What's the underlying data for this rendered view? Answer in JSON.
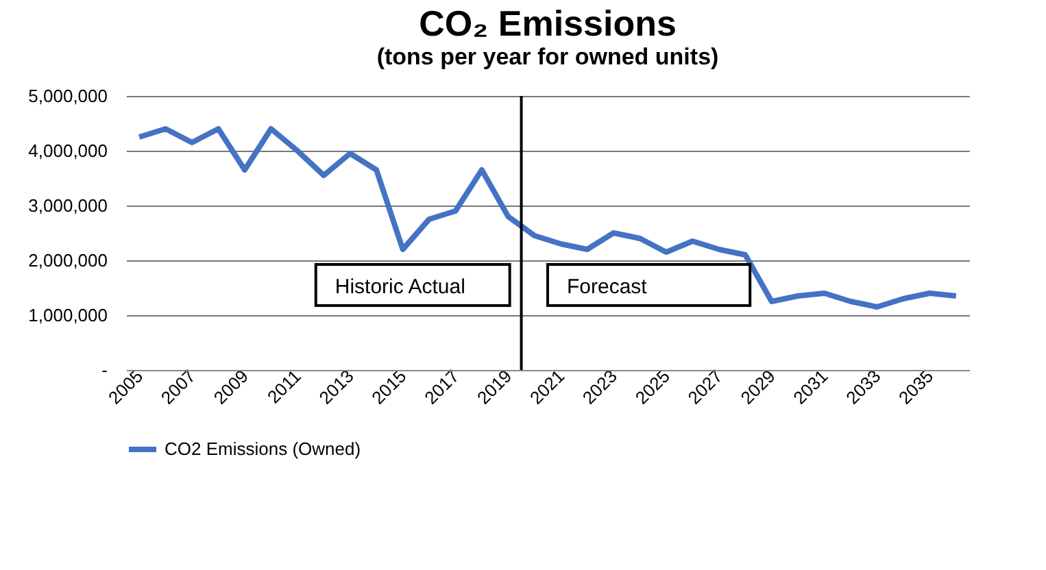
{
  "chart_data": {
    "type": "line",
    "title": "CO₂ Emissions",
    "subtitle": "(tons per year for owned units)",
    "x": [
      2005,
      2006,
      2007,
      2008,
      2009,
      2010,
      2011,
      2012,
      2013,
      2014,
      2015,
      2016,
      2017,
      2018,
      2019,
      2020,
      2021,
      2022,
      2023,
      2024,
      2025,
      2026,
      2027,
      2028,
      2029,
      2030,
      2031,
      2032,
      2033,
      2034,
      2035,
      2036
    ],
    "series": [
      {
        "name": "CO2 Emissions (Owned)",
        "color": "#4472c4",
        "values": [
          4250000,
          4400000,
          4150000,
          4400000,
          3650000,
          4400000,
          4000000,
          3550000,
          3950000,
          3650000,
          2200000,
          2750000,
          2900000,
          3650000,
          2800000,
          2450000,
          2300000,
          2200000,
          2500000,
          2400000,
          2150000,
          2350000,
          2200000,
          2100000,
          1250000,
          1350000,
          1400000,
          1250000,
          1150000,
          1300000,
          1400000,
          1350000
        ]
      }
    ],
    "xlim": [
      2004.5,
      2036.5
    ],
    "xticks": [
      2005,
      2007,
      2009,
      2011,
      2013,
      2015,
      2017,
      2019,
      2021,
      2023,
      2025,
      2027,
      2029,
      2031,
      2033,
      2035
    ],
    "ylim": [
      0,
      5000000
    ],
    "yticks": [
      {
        "value": 0,
        "label": "-"
      },
      {
        "value": 1000000,
        "label": "1,000,000"
      },
      {
        "value": 2000000,
        "label": "2,000,000"
      },
      {
        "value": 3000000,
        "label": "3,000,000"
      },
      {
        "value": 4000000,
        "label": "4,000,000"
      },
      {
        "value": 5000000,
        "label": "5,000,000"
      }
    ],
    "ref_lines": [
      {
        "axis": "x",
        "value": 2019.5,
        "color": "#000000"
      }
    ],
    "annotations": [
      "Historic Actual",
      "Forecast"
    ],
    "grid": "y",
    "legend": "bottom",
    "marker": "none",
    "line_style": "solid"
  }
}
